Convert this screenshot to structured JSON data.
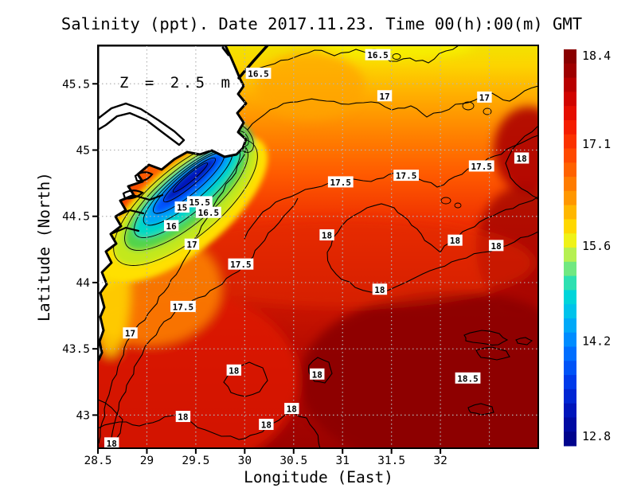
{
  "chart_data": {
    "type": "heatmap",
    "title": "Salinity (ppt). Date 2017.11.23. Time 00(h):00(m) GMT",
    "annotation": "Z = 2.5 m",
    "xlabel": "Longitude (East)",
    "ylabel": "Latitude (North)",
    "units": "ppt",
    "depth": "2.5 m",
    "x_range": [
      28.5,
      33.0
    ],
    "y_range": [
      42.75,
      45.79
    ],
    "x_ticks": [
      28.5,
      29,
      29.5,
      30,
      30.5,
      31,
      31.5,
      32
    ],
    "x_gridlines": [
      29,
      29.5,
      30,
      30.5,
      31,
      31.5,
      32,
      32.5
    ],
    "y_ticks": [
      45.5,
      45,
      44.5,
      44,
      43.5,
      43
    ],
    "grid": "dotted",
    "colorbar": {
      "min": 12.8,
      "max": 18.4,
      "tick_labels": [
        18.4,
        17.1,
        15.6,
        14.2,
        12.8
      ],
      "steps": 28,
      "stops": [
        [
          0.0,
          "#7f0000"
        ],
        [
          0.05,
          "#9b0000"
        ],
        [
          0.11,
          "#c80000"
        ],
        [
          0.18,
          "#f01400"
        ],
        [
          0.25,
          "#ff3c00"
        ],
        [
          0.32,
          "#ff6e00"
        ],
        [
          0.38,
          "#ff9b00"
        ],
        [
          0.43,
          "#ffc800"
        ],
        [
          0.47,
          "#fff000"
        ],
        [
          0.5,
          "#d7f43c"
        ],
        [
          0.54,
          "#8ceb6e"
        ],
        [
          0.58,
          "#3ce3a5"
        ],
        [
          0.62,
          "#00d7d7"
        ],
        [
          0.67,
          "#00bef0"
        ],
        [
          0.72,
          "#0096ff"
        ],
        [
          0.78,
          "#0064ff"
        ],
        [
          0.85,
          "#0032e6"
        ],
        [
          0.92,
          "#0011b4"
        ],
        [
          1.0,
          "#000082"
        ]
      ]
    },
    "contour_labels": [
      {
        "v": "16.5",
        "lon": 30.14,
        "lat": 45.58
      },
      {
        "v": "16.5",
        "lon": 31.36,
        "lat": 45.72
      },
      {
        "v": "17",
        "lon": 31.43,
        "lat": 45.41
      },
      {
        "v": "17",
        "lon": 32.45,
        "lat": 45.4
      },
      {
        "v": "18",
        "lon": 32.83,
        "lat": 44.94
      },
      {
        "v": "17.5",
        "lon": 32.42,
        "lat": 44.88
      },
      {
        "v": "17.5",
        "lon": 31.65,
        "lat": 44.81
      },
      {
        "v": "17.5",
        "lon": 30.98,
        "lat": 44.76
      },
      {
        "v": "15.5",
        "lon": 29.54,
        "lat": 44.61
      },
      {
        "v": "15",
        "lon": 29.36,
        "lat": 44.57
      },
      {
        "v": "16.5",
        "lon": 29.63,
        "lat": 44.53
      },
      {
        "v": "16",
        "lon": 29.25,
        "lat": 44.43
      },
      {
        "v": "17",
        "lon": 29.46,
        "lat": 44.29
      },
      {
        "v": "17.5",
        "lon": 29.96,
        "lat": 44.14
      },
      {
        "v": "18",
        "lon": 30.84,
        "lat": 44.36
      },
      {
        "v": "18",
        "lon": 32.15,
        "lat": 44.32
      },
      {
        "v": "18",
        "lon": 32.57,
        "lat": 44.28
      },
      {
        "v": "18",
        "lon": 31.38,
        "lat": 43.95
      },
      {
        "v": "17.5",
        "lon": 29.37,
        "lat": 43.82
      },
      {
        "v": "17",
        "lon": 28.83,
        "lat": 43.62
      },
      {
        "v": "18",
        "lon": 29.89,
        "lat": 43.34
      },
      {
        "v": "18",
        "lon": 30.74,
        "lat": 43.31
      },
      {
        "v": "18.5",
        "lon": 32.28,
        "lat": 43.28
      },
      {
        "v": "18",
        "lon": 30.48,
        "lat": 43.05
      },
      {
        "v": "18",
        "lon": 29.37,
        "lat": 42.99
      },
      {
        "v": "18",
        "lon": 30.22,
        "lat": 42.93
      },
      {
        "v": "18",
        "lon": 28.64,
        "lat": 42.79
      }
    ]
  }
}
